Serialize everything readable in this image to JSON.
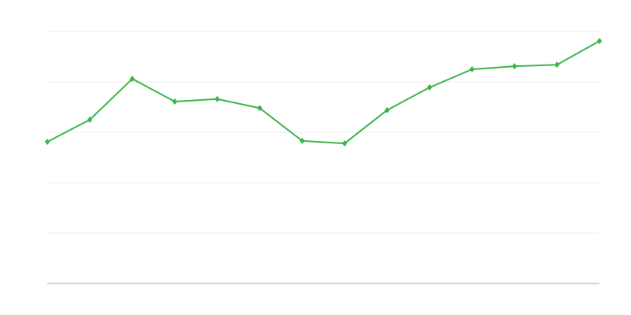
{
  "chart_data": {
    "type": "line",
    "title": "",
    "xlabel": "",
    "ylabel": "",
    "x": [
      1,
      2,
      3,
      4,
      5,
      6,
      7,
      8,
      9,
      10,
      11,
      12,
      13,
      14
    ],
    "series": [
      {
        "values": [
          2.81,
          3.25,
          4.06,
          3.61,
          3.66,
          3.48,
          2.83,
          2.78,
          3.44,
          3.89,
          4.25,
          4.31,
          4.34,
          4.81
        ],
        "color": "#3bb54a"
      }
    ],
    "ylim": [
      0,
      5
    ],
    "xlim": [
      1,
      14
    ],
    "yticks": [
      0,
      1,
      2,
      3,
      4,
      5
    ],
    "grid": true,
    "marker": "diamond",
    "gridColor": "#eeeeee",
    "axisColor": "#aaaaaa"
  }
}
